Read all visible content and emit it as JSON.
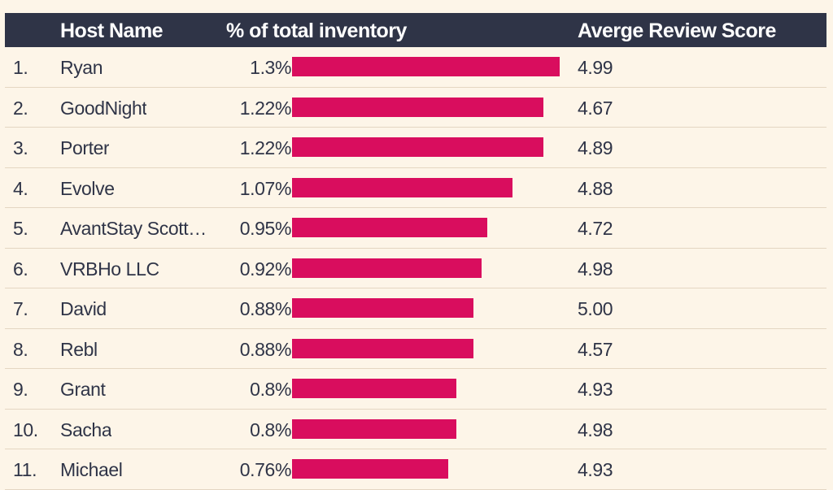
{
  "header": {
    "host_name": "Host Name",
    "pct_inventory": "% of total inventory",
    "avg_score": "Averge Review Score"
  },
  "colors": {
    "header_bg": "#2f3447",
    "bar": "#d90d5e",
    "background": "#fdf5e8"
  },
  "chart_data": {
    "type": "bar",
    "categories": [
      "Ryan",
      "GoodNight",
      "Porter",
      "Evolve",
      "AvantStay Scottsd...",
      "VRBHo LLC",
      "David",
      "Rebl",
      "Grant",
      "Sacha",
      "Michael"
    ],
    "ranks": [
      "1.",
      "2.",
      "3.",
      "4.",
      "5.",
      "6.",
      "7.",
      "8.",
      "9.",
      "10.",
      "11."
    ],
    "values": [
      1.3,
      1.22,
      1.22,
      1.07,
      0.95,
      0.92,
      0.88,
      0.88,
      0.8,
      0.8,
      0.76
    ],
    "value_labels": [
      "1.3%",
      "1.22%",
      "1.22%",
      "1.07%",
      "0.95%",
      "0.92%",
      "0.88%",
      "0.88%",
      "0.8%",
      "0.8%",
      "0.76%"
    ],
    "review_scores": [
      "4.99",
      "4.67",
      "4.89",
      "4.88",
      "4.72",
      "4.98",
      "5.00",
      "4.57",
      "4.93",
      "4.98",
      "4.93"
    ],
    "xlim": [
      0,
      1.3
    ]
  }
}
